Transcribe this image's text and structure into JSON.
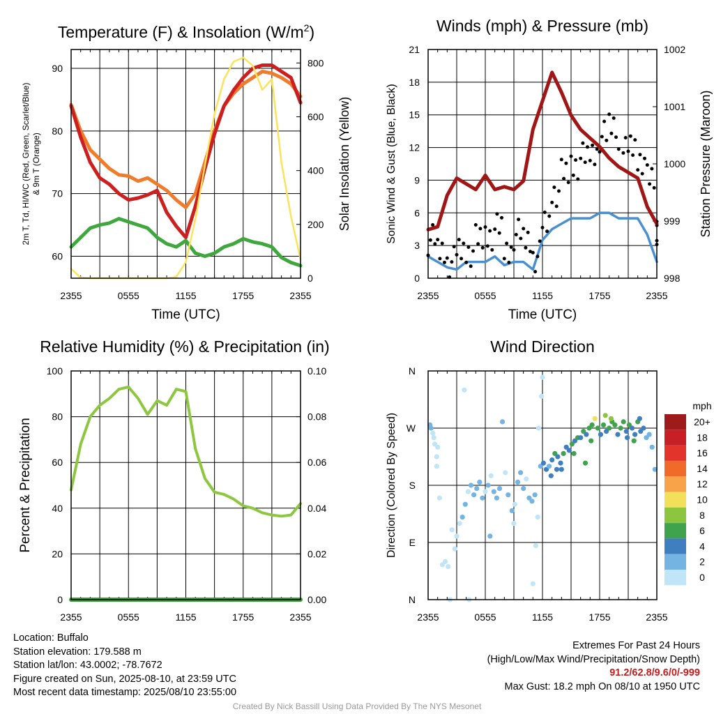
{
  "colors": {
    "red": "#cc1f1f",
    "orange": "#f07b2a",
    "green": "#3ea83e",
    "yellow": "#fde35a",
    "blue": "#4a90d0",
    "black": "#000000",
    "maroon": "#a01616",
    "rh_green": "#8dc73f",
    "precip_green": "#3a9e3a",
    "extremes_red": "#c41e1e"
  },
  "chart_data": [
    {
      "id": "temperature",
      "type": "line",
      "title": "Temperature (F) & Insolation (W/m²)",
      "title_main": "Temperature (F) & Insolation (W/m",
      "title_sup": "2",
      "title_close": ")",
      "xlabel": "Time (UTC)",
      "ylabel_lines": [
        "2m T, Td, HI/WC (Red, Green, Scarlet/Blue)",
        "& 9m T (Orange)"
      ],
      "y2label": "Solar Insolation (Yellow)",
      "x_ticks": [
        "2355",
        "0555",
        "1155",
        "1755",
        "2355"
      ],
      "x": [
        0,
        1,
        2,
        3,
        4,
        5,
        6,
        7,
        8,
        9,
        10,
        11,
        12,
        13,
        14,
        15,
        16,
        17,
        18,
        19,
        20,
        21,
        22,
        23,
        24
      ],
      "ylim": [
        56.5,
        93
      ],
      "yticks": [
        60,
        70,
        80,
        90
      ],
      "y2lim": [
        0,
        850
      ],
      "y2ticks": [
        0,
        200,
        400,
        600,
        800
      ],
      "grid": true,
      "series": [
        {
          "key": "t9m",
          "axis": "left",
          "color": "orange",
          "width": 5,
          "values": [
            84.2,
            80,
            77,
            75.5,
            74,
            73,
            72.8,
            72,
            72.5,
            71.5,
            70.5,
            69,
            67.8,
            70,
            75,
            80,
            84,
            86,
            87.5,
            88.5,
            89.5,
            89.2,
            88.5,
            87.5,
            85.5
          ]
        },
        {
          "key": "t2m",
          "axis": "left",
          "color": "red",
          "width": 5,
          "values": [
            84,
            79,
            75,
            72.5,
            71.5,
            70,
            69,
            69.3,
            69.8,
            70.5,
            67,
            64.8,
            63,
            68,
            74,
            79.5,
            84,
            86.5,
            88.5,
            90,
            90.5,
            90.5,
            89.5,
            88.5,
            84.5
          ]
        },
        {
          "key": "td",
          "axis": "left",
          "color": "green",
          "width": 5,
          "values": [
            61.5,
            63,
            64.5,
            65,
            65.3,
            66,
            65.5,
            65,
            64.5,
            63,
            62,
            61.5,
            62.5,
            60.5,
            60,
            60.5,
            61.5,
            62,
            62.8,
            62.3,
            62,
            61.5,
            59.8,
            59,
            58.5
          ]
        },
        {
          "key": "solar",
          "axis": "right",
          "color": "yellow",
          "width": 2.5,
          "values": [
            35,
            2,
            0,
            0,
            0,
            0,
            0,
            0,
            0,
            0,
            0,
            5,
            60,
            220,
            420,
            610,
            740,
            805,
            820,
            790,
            700,
            740,
            430,
            230,
            70
          ]
        }
      ]
    },
    {
      "id": "winds",
      "type": "line",
      "title": "Winds (mph) & Pressure (mb)",
      "xlabel": "Time (UTC)",
      "ylabel": "Sonic Wind & Gust (Blue, Black)",
      "y2label": "Station Pressure (Maroon)",
      "x_ticks": [
        "2355",
        "0555",
        "1155",
        "1755",
        "2355"
      ],
      "x": [
        0,
        1,
        2,
        3,
        4,
        5,
        6,
        7,
        8,
        9,
        10,
        11,
        12,
        13,
        14,
        15,
        16,
        17,
        18,
        19,
        20,
        21,
        22,
        23,
        24
      ],
      "ylim": [
        0,
        21
      ],
      "yticks": [
        0,
        3,
        6,
        9,
        12,
        15,
        18,
        21
      ],
      "y2lim": [
        998,
        1002
      ],
      "y2ticks": [
        998,
        999,
        1000,
        1001,
        1002
      ],
      "grid": true,
      "series": [
        {
          "key": "wind",
          "axis": "left",
          "color": "blue",
          "width": 3.5,
          "values": [
            2,
            1.5,
            1,
            0.8,
            1.5,
            1.5,
            1.5,
            2,
            1.2,
            1.5,
            1.5,
            0.8,
            3.5,
            4.5,
            5,
            5.5,
            5.5,
            5.5,
            6,
            6,
            5.5,
            5.5,
            5.5,
            4,
            1.5
          ]
        },
        {
          "key": "gust",
          "axis": "left",
          "color": "black",
          "points": true,
          "values": [
            3.5,
            2.5,
            1.5,
            2.5,
            2.5,
            3.5,
            4,
            4.5,
            2.5,
            4,
            3.5,
            2,
            5,
            8,
            9.5,
            10.5,
            11,
            11.5,
            13,
            14,
            11.5,
            12,
            11,
            9,
            4.5
          ]
        },
        {
          "key": "pressure",
          "axis": "right",
          "color": "maroon",
          "width": 5,
          "values": [
            998.85,
            998.9,
            999.45,
            999.75,
            999.65,
            999.55,
            999.8,
            999.55,
            999.6,
            999.55,
            999.7,
            1000.6,
            1001.1,
            1001.6,
            1001.25,
            1000.85,
            1000.6,
            1000.45,
            1000.3,
            1000.1,
            999.95,
            999.85,
            999.75,
            999.25,
            998.95
          ]
        }
      ]
    },
    {
      "id": "humidity",
      "type": "line",
      "title": "Relative Humidity (%) & Precipitation (in)",
      "ylabel": "Percent & Precipitation",
      "x_ticks": [
        "2355",
        "0555",
        "1155",
        "1755",
        "2355"
      ],
      "x": [
        0,
        1,
        2,
        3,
        4,
        5,
        6,
        7,
        8,
        9,
        10,
        11,
        12,
        13,
        14,
        15,
        16,
        17,
        18,
        19,
        20,
        21,
        22,
        23,
        24
      ],
      "ylim": [
        0,
        100
      ],
      "yticks": [
        0,
        20,
        40,
        60,
        80,
        100
      ],
      "y2lim": [
        0,
        0.1
      ],
      "y2ticks": [
        "0.00",
        "0.02",
        "0.04",
        "0.06",
        "0.08",
        "0.10"
      ],
      "grid": true,
      "series": [
        {
          "key": "rh",
          "axis": "left",
          "color": "rh_green",
          "width": 4,
          "values": [
            48,
            68,
            80,
            85,
            88,
            92,
            93,
            88,
            81,
            87,
            85,
            92,
            91,
            66,
            53,
            47,
            46,
            44,
            41,
            40,
            38,
            37,
            36.5,
            37,
            42
          ]
        },
        {
          "key": "precip",
          "axis": "right",
          "color": "precip_green",
          "width": 6,
          "values": [
            0,
            0,
            0,
            0,
            0,
            0,
            0,
            0,
            0,
            0,
            0,
            0,
            0,
            0,
            0,
            0,
            0,
            0,
            0,
            0,
            0,
            0,
            0,
            0,
            0
          ]
        }
      ]
    },
    {
      "id": "direction",
      "type": "scatter",
      "title": "Wind Direction",
      "ylabel": "Direction (Colored By Speed)",
      "x_ticks": [
        "2355",
        "0555",
        "1155",
        "1755",
        "2355"
      ],
      "ytick_labels": [
        "N",
        "E",
        "S",
        "W",
        "N"
      ],
      "ylim": [
        0,
        360
      ],
      "grid": true,
      "legend_title": "mph",
      "legend_labels": [
        "20+",
        "18",
        "16",
        "14",
        "12",
        "10",
        "8",
        "6",
        "4",
        "2",
        "0"
      ],
      "legend_colors": [
        "#9e1b1b",
        "#c62026",
        "#e2342b",
        "#f06a2a",
        "#f8a34a",
        "#f2e05a",
        "#8cc63f",
        "#3fa34d",
        "#3f7fbf",
        "#73b4e3",
        "#bfe5f7"
      ],
      "points": [
        [
          0.2,
          275,
          3
        ],
        [
          0.3,
          270,
          2
        ],
        [
          0.5,
          262,
          1
        ],
        [
          0.6,
          255,
          1
        ],
        [
          0.7,
          245,
          1
        ],
        [
          0.9,
          225,
          1
        ],
        [
          1.0,
          240,
          0
        ],
        [
          0.9,
          210,
          1
        ],
        [
          1.2,
          160,
          1
        ],
        [
          1.5,
          55,
          1
        ],
        [
          1.8,
          60,
          1
        ],
        [
          2.1,
          52,
          0
        ],
        [
          2.3,
          0,
          0
        ],
        [
          2.5,
          110,
          1
        ],
        [
          2.8,
          80,
          1
        ],
        [
          3.0,
          100,
          1
        ],
        [
          3.3,
          120,
          1
        ],
        [
          3.6,
          130,
          2
        ],
        [
          3.9,
          150,
          2
        ],
        [
          4.2,
          170,
          1
        ],
        [
          4.5,
          180,
          2
        ],
        [
          4.8,
          165,
          2
        ],
        [
          5.1,
          175,
          2
        ],
        [
          5.4,
          185,
          2
        ],
        [
          5.7,
          160,
          2
        ],
        [
          6.0,
          170,
          1
        ],
        [
          6.3,
          180,
          2
        ],
        [
          6.6,
          195,
          1
        ],
        [
          6.9,
          170,
          2
        ],
        [
          7.2,
          160,
          2
        ],
        [
          7.5,
          175,
          2
        ],
        [
          7.8,
          280,
          2
        ],
        [
          8.1,
          200,
          1
        ],
        [
          8.4,
          165,
          2
        ],
        [
          8.8,
          140,
          2
        ],
        [
          9.1,
          150,
          1
        ],
        [
          9.4,
          185,
          2
        ],
        [
          9.7,
          200,
          3
        ],
        [
          10.0,
          175,
          2
        ],
        [
          10.3,
          190,
          1
        ],
        [
          10.6,
          160,
          2
        ],
        [
          10.9,
          155,
          2
        ],
        [
          11.2,
          165,
          2
        ],
        [
          11.5,
          130,
          1
        ],
        [
          11.8,
          210,
          3
        ],
        [
          12.1,
          215,
          4
        ],
        [
          12.4,
          205,
          4
        ],
        [
          12.7,
          210,
          3
        ],
        [
          13.0,
          220,
          5
        ],
        [
          13.3,
          230,
          6
        ],
        [
          13.6,
          225,
          4
        ],
        [
          13.9,
          215,
          5
        ],
        [
          14.2,
          230,
          6
        ],
        [
          14.5,
          240,
          4
        ],
        [
          14.8,
          235,
          5
        ],
        [
          15.1,
          245,
          7
        ],
        [
          15.4,
          250,
          5
        ],
        [
          15.7,
          255,
          6
        ],
        [
          16.0,
          255,
          4
        ],
        [
          16.3,
          265,
          6
        ],
        [
          16.6,
          260,
          5
        ],
        [
          16.9,
          270,
          6
        ],
        [
          17.2,
          275,
          7
        ],
        [
          17.5,
          285,
          10
        ],
        [
          17.8,
          270,
          6
        ],
        [
          18.1,
          260,
          5
        ],
        [
          18.4,
          275,
          6
        ],
        [
          18.7,
          265,
          4
        ],
        [
          19.0,
          270,
          6
        ],
        [
          19.3,
          280,
          7
        ],
        [
          19.6,
          275,
          6
        ],
        [
          19.9,
          260,
          5
        ],
        [
          20.2,
          270,
          7
        ],
        [
          20.5,
          280,
          6
        ],
        [
          20.8,
          265,
          5
        ],
        [
          21.1,
          275,
          6
        ],
        [
          21.4,
          270,
          4
        ],
        [
          21.7,
          260,
          5
        ],
        [
          22.0,
          280,
          6
        ],
        [
          22.3,
          265,
          5
        ],
        [
          22.6,
          270,
          4
        ],
        [
          22.9,
          255,
          3
        ],
        [
          23.2,
          260,
          3
        ],
        [
          23.5,
          240,
          2
        ],
        [
          23.8,
          205,
          3
        ],
        [
          11.0,
          25,
          1
        ],
        [
          11.3,
          85,
          1
        ],
        [
          11.6,
          270,
          1
        ],
        [
          11.9,
          320,
          1
        ],
        [
          12.0,
          350,
          1
        ],
        [
          3.8,
          330,
          0
        ],
        [
          4.3,
          0,
          0
        ],
        [
          6.5,
          100,
          2
        ],
        [
          9.0,
          120,
          1
        ],
        [
          16.5,
          215,
          7
        ],
        [
          19.2,
          285,
          8
        ],
        [
          21.6,
          250,
          6
        ],
        [
          14.0,
          205,
          5
        ],
        [
          15.3,
          230,
          7
        ],
        [
          12.9,
          195,
          4
        ],
        [
          17.1,
          250,
          6
        ],
        [
          18.6,
          290,
          9
        ],
        [
          22.2,
          285,
          4
        ],
        [
          20.9,
          255,
          5
        ],
        [
          13.5,
          205,
          4
        ]
      ]
    }
  ],
  "info_left": [
    "Location: Buffalo",
    "Station elevation: 179.588 m",
    "Station lat/lon: 43.0002; -78.7672",
    "Figure created on Sun, 2025-08-10, at 23:59 UTC",
    "Most recent data timestamp: 2025/08/10 23:55:00"
  ],
  "info_right": {
    "heading": "Extremes For Past 24 Hours",
    "subheading": "(High/Low/Max Wind/Precipitation/Snow Depth)",
    "values": "91.2/62.8/9.6/0/-999",
    "max_gust": "Max Gust: 18.2 mph On 08/10 at 1950 UTC"
  },
  "credit": "Created By Nick Bassill Using Data Provided By The NYS Mesonet"
}
